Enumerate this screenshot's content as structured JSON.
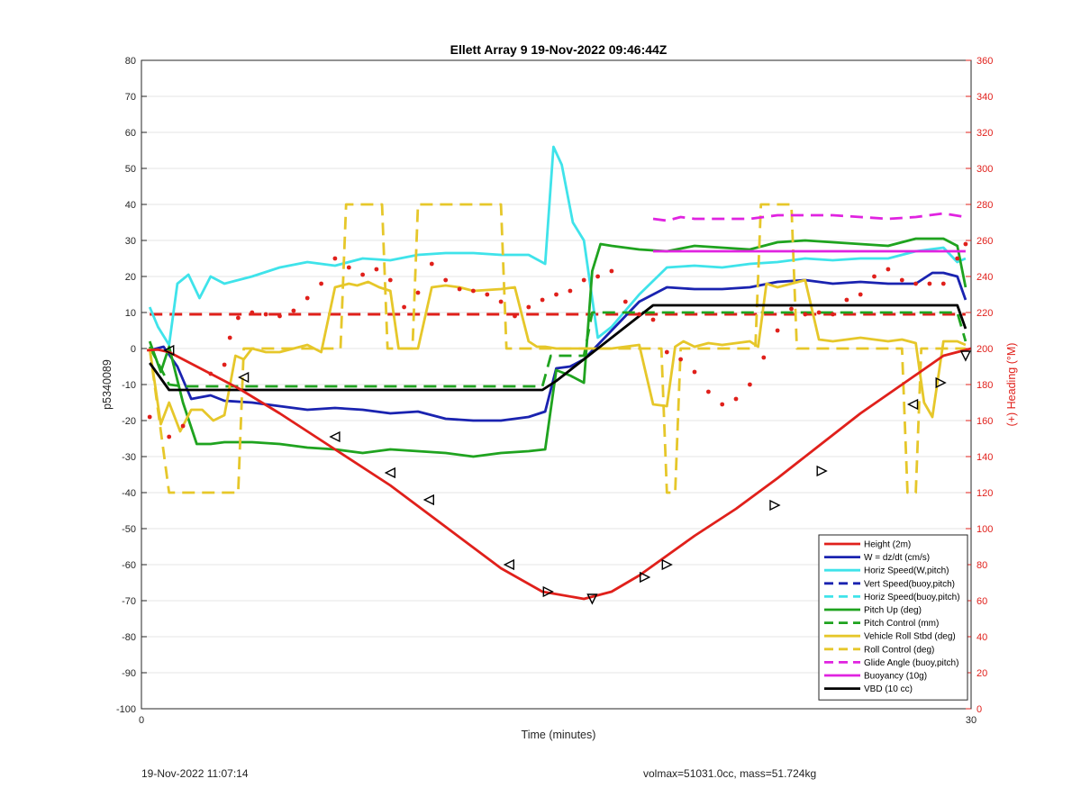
{
  "chart_data": {
    "type": "line",
    "title": "Ellett Array 9 19-Nov-2022 09:46:44Z",
    "xlabel": "Time (minutes)",
    "ylabel": "p5340089",
    "ylabel_right": "(+) Heading (°M)",
    "xlim": [
      0,
      30
    ],
    "ylim": [
      -100,
      80
    ],
    "ylim_right": [
      0,
      360
    ],
    "xticks": [
      0,
      30
    ],
    "yticks": [
      -100,
      -90,
      -80,
      -70,
      -60,
      -50,
      -40,
      -30,
      -20,
      -10,
      0,
      10,
      20,
      30,
      40,
      50,
      60,
      70,
      80
    ],
    "yticks_right": [
      0,
      20,
      40,
      60,
      80,
      100,
      120,
      140,
      160,
      180,
      200,
      220,
      240,
      260,
      280,
      300,
      320,
      340,
      360
    ],
    "grid": "horizontal",
    "legend_position": "bottom-right",
    "series": [
      {
        "name": "Height (2m)",
        "color": "#e0201b",
        "style": "solid",
        "x": [
          0.2,
          0.6,
          1.0,
          1.5,
          2.5,
          3.5,
          5.0,
          7.0,
          9.0,
          11.0,
          13.0,
          14.5,
          16.0,
          17.0,
          18.0,
          19.0,
          20.0,
          21.5,
          23.0,
          24.5,
          26.0,
          27.5,
          29.0,
          30.0
        ],
        "y": [
          -0.5,
          -0.3,
          -1.0,
          -3.0,
          -7.0,
          -11.0,
          -18.0,
          -28.0,
          -38.0,
          -49.5,
          -61.0,
          -67.5,
          -69.5,
          -67.5,
          -63.0,
          -57.5,
          -52.0,
          -44.5,
          -36.0,
          -27.0,
          -18.0,
          -10.0,
          -2.0,
          0.0
        ]
      },
      {
        "name": "W = dz/dt (cm/s)",
        "color": "#1a23b0",
        "style": "solid",
        "x": [
          0.3,
          0.8,
          1.3,
          1.8,
          2.5,
          3.0,
          4.0,
          5.0,
          6.0,
          7.0,
          8.0,
          9.0,
          10.0,
          11.0,
          12.0,
          13.0,
          14.0,
          14.6,
          15.0,
          15.5,
          16.0,
          17.0,
          18.0,
          19.0,
          20.0,
          21.0,
          22.0,
          23.0,
          24.0,
          25.0,
          26.0,
          27.0,
          28.0,
          28.6,
          29.0,
          29.5,
          29.8
        ],
        "y": [
          -0.5,
          0.5,
          -5.0,
          -14.0,
          -13.0,
          -14.5,
          -15.0,
          -16.0,
          -17.0,
          -16.5,
          -17.0,
          -18.0,
          -17.5,
          -19.5,
          -20.0,
          -20.0,
          -19.0,
          -17.5,
          -5.5,
          -5.0,
          -3.0,
          5.0,
          13.0,
          17.0,
          16.5,
          16.5,
          17.0,
          18.5,
          19.0,
          18.0,
          18.5,
          18.0,
          18.0,
          21.0,
          21.0,
          20.0,
          13.5
        ]
      },
      {
        "name": "Horiz Speed(W,pitch)",
        "color": "#3fe3ea",
        "style": "solid",
        "x": [
          0.3,
          0.6,
          1.0,
          1.3,
          1.7,
          2.1,
          2.5,
          3.0,
          4.0,
          5.0,
          6.0,
          7.0,
          8.0,
          9.0,
          10.0,
          11.0,
          12.0,
          13.0,
          14.0,
          14.6,
          14.9,
          15.2,
          15.6,
          16.0,
          16.5,
          17.0,
          18.0,
          19.0,
          20.0,
          21.0,
          22.0,
          23.0,
          24.0,
          25.0,
          26.0,
          27.0,
          28.0,
          29.0,
          29.5,
          29.8
        ],
        "y": [
          11.5,
          6.0,
          1.0,
          18.0,
          20.5,
          14.0,
          20.0,
          18.0,
          20.0,
          22.5,
          24.0,
          23.0,
          25.0,
          24.5,
          26.0,
          26.5,
          26.5,
          26.0,
          26.0,
          23.5,
          56.0,
          51.0,
          35.0,
          30.0,
          3.0,
          6.0,
          15.0,
          22.5,
          23.0,
          22.5,
          23.5,
          24.0,
          25.0,
          24.5,
          25.0,
          25.0,
          27.0,
          28.0,
          24.0,
          25.0
        ]
      },
      {
        "name": "Vert Speed(buoy,pitch)",
        "color": "#1a23b0",
        "style": "dashed",
        "x": [],
        "y": []
      },
      {
        "name": "Horiz Speed(buoy,pitch)",
        "color": "#3fe3ea",
        "style": "dashed",
        "x": [],
        "y": []
      },
      {
        "name": "Pitch Up (deg)",
        "color": "#1fa31f",
        "style": "solid",
        "x": [
          0.3,
          0.7,
          1.0,
          1.5,
          2.0,
          2.5,
          3.0,
          4.0,
          5.0,
          6.0,
          7.0,
          8.0,
          9.0,
          10.0,
          11.0,
          12.0,
          13.0,
          14.0,
          14.6,
          15.0,
          15.5,
          16.0,
          16.3,
          16.6,
          17.0,
          18.0,
          19.0,
          20.0,
          21.0,
          22.0,
          23.0,
          24.0,
          25.0,
          26.0,
          27.0,
          28.0,
          29.0,
          29.5,
          29.8
        ],
        "y": [
          2.0,
          -6.5,
          0.5,
          -15.0,
          -26.5,
          -26.5,
          -26.0,
          -26.0,
          -26.5,
          -27.5,
          -28.0,
          -29.0,
          -28.0,
          -28.5,
          -29.0,
          -30.0,
          -29.0,
          -28.5,
          -28.0,
          -6.0,
          -7.5,
          -9.5,
          21.5,
          29.0,
          28.5,
          27.5,
          27.0,
          28.5,
          28.0,
          27.5,
          29.5,
          30.0,
          29.5,
          29.0,
          28.5,
          30.5,
          30.5,
          28.5,
          17.0
        ]
      },
      {
        "name": "Pitch Control (mm)",
        "color": "#1fa31f",
        "style": "dashed",
        "x": [
          0.3,
          1.0,
          1.5,
          14.5,
          14.8,
          16.0,
          16.3,
          29.5,
          29.8
        ],
        "y": [
          0.5,
          -10.0,
          -10.5,
          -10.5,
          -2.0,
          -2.0,
          10.0,
          10.0,
          2.0
        ]
      },
      {
        "name": "Vehicle Roll Stbd (deg)",
        "color": "#e6c72a",
        "style": "solid",
        "x": [
          0.3,
          0.7,
          1.0,
          1.4,
          1.8,
          2.2,
          2.6,
          3.0,
          3.4,
          3.7,
          4.0,
          4.5,
          5.0,
          5.5,
          6.0,
          6.5,
          7.0,
          7.5,
          7.8,
          8.2,
          8.6,
          9.0,
          9.3,
          9.6,
          10.0,
          10.5,
          11.0,
          11.5,
          12.0,
          13.0,
          13.5,
          14.0,
          14.3,
          14.6,
          15.0,
          16.0,
          17.0,
          18.0,
          18.5,
          19.0,
          19.3,
          19.6,
          20.0,
          20.5,
          21.0,
          22.0,
          22.3,
          22.6,
          23.0,
          23.5,
          24.0,
          24.5,
          25.0,
          25.5,
          26.0,
          26.5,
          27.0,
          27.5,
          28.0,
          28.3,
          28.6,
          29.0,
          29.5,
          29.8
        ],
        "y": [
          0.0,
          -21.0,
          -15.0,
          -23.0,
          -17.0,
          -17.0,
          -20.0,
          -18.5,
          -2.0,
          -3.0,
          0.0,
          -1.0,
          -1.0,
          0.0,
          1.0,
          -1.0,
          17.0,
          18.0,
          17.5,
          18.5,
          17.0,
          16.0,
          0.0,
          0.0,
          0.0,
          17.0,
          17.5,
          17.0,
          16.0,
          16.5,
          17.0,
          2.0,
          0.5,
          0.5,
          0.0,
          0.0,
          0.0,
          1.0,
          -15.5,
          -16.0,
          0.5,
          2.0,
          0.5,
          1.5,
          1.0,
          2.0,
          0.5,
          18.0,
          17.0,
          18.0,
          19.0,
          2.5,
          2.0,
          2.5,
          3.0,
          2.5,
          2.0,
          2.5,
          1.5,
          -15.0,
          -19.0,
          2.0,
          2.0,
          1.0
        ]
      },
      {
        "name": "Roll Control (deg)",
        "color": "#e6c72a",
        "style": "dashed",
        "x": [
          0.3,
          1.0,
          3.5,
          3.7,
          7.2,
          7.4,
          8.7,
          8.9,
          9.8,
          10.0,
          13.0,
          13.2,
          18.8,
          19.0,
          19.3,
          19.5,
          22.2,
          22.4,
          23.5,
          23.7,
          27.5,
          27.7,
          28.0,
          28.2,
          29.8
        ],
        "y": [
          0.0,
          -40.0,
          -40.0,
          0.0,
          0.0,
          40.0,
          40.0,
          0.0,
          0.0,
          40.0,
          40.0,
          0.0,
          0.0,
          -40.0,
          -40.0,
          0.0,
          0.0,
          40.0,
          40.0,
          0.0,
          0.0,
          -40.0,
          -40.0,
          0.0,
          0.0
        ]
      },
      {
        "name": "Glide Angle (buoy,pitch)",
        "color": "#e023e0",
        "style": "dashed",
        "x": [
          18.5,
          19.0,
          19.5,
          20.0,
          21.0,
          22.0,
          22.5,
          23.0,
          24.0,
          25.0,
          26.0,
          27.0,
          28.0,
          29.0,
          29.8
        ],
        "y": [
          36.0,
          35.5,
          36.5,
          36.0,
          36.0,
          36.0,
          36.5,
          37.0,
          37.0,
          37.0,
          36.5,
          36.0,
          36.5,
          37.5,
          36.5
        ]
      },
      {
        "name": "Buoyancy (10g)",
        "color": "#e023e0",
        "style": "solid",
        "x": [
          18.5,
          29.8
        ],
        "y": [
          27.0,
          27.0
        ]
      },
      {
        "name": "VBD (10 cc)",
        "color": "#000000",
        "style": "solid",
        "x": [
          0.3,
          1.0,
          14.5,
          15.0,
          16.0,
          17.0,
          18.0,
          18.5,
          29.5,
          29.8
        ],
        "y": [
          -4.0,
          -11.5,
          -11.5,
          -9.0,
          -3.0,
          3.0,
          9.0,
          12.0,
          12.0,
          5.5
        ]
      }
    ],
    "heading_series": {
      "name": "Heading",
      "axis": "right",
      "color": "#e0201b",
      "markers": "dots",
      "x": [
        0.3,
        1.0,
        1.5,
        2.5,
        3.0,
        3.2,
        3.5,
        4.0,
        4.5,
        5.0,
        5.5,
        6.0,
        6.5,
        7.0,
        7.5,
        8.0,
        8.5,
        9.0,
        9.5,
        10.0,
        10.5,
        11.0,
        11.5,
        12.0,
        12.5,
        13.0,
        13.5,
        14.0,
        14.5,
        15.0,
        15.5,
        16.0,
        16.5,
        17.0,
        17.5,
        18.0,
        18.5,
        19.0,
        19.5,
        20.0,
        20.5,
        21.0,
        21.5,
        22.0,
        22.5,
        23.0,
        23.5,
        24.0,
        24.5,
        25.0,
        25.5,
        26.0,
        26.5,
        27.0,
        27.5,
        28.0,
        28.5,
        29.0,
        29.5,
        29.8
      ],
      "y": [
        162,
        151,
        157,
        186,
        191,
        206,
        217,
        220,
        219,
        218,
        221,
        228,
        236,
        250,
        245,
        241,
        244,
        238,
        223,
        231,
        247,
        238,
        233,
        232,
        230,
        226,
        218,
        223,
        227,
        230,
        232,
        238,
        240,
        243,
        226,
        219,
        216,
        198,
        194,
        187,
        176,
        169,
        172,
        180,
        195,
        210,
        222,
        219,
        220,
        219,
        227,
        230,
        240,
        244,
        238,
        236,
        236,
        236,
        250,
        258
      ]
    },
    "height_markers": [
      {
        "x": 1.0,
        "y": -0.5,
        "dir": "left"
      },
      {
        "x": 3.7,
        "y": -8.0,
        "dir": "left"
      },
      {
        "x": 7.0,
        "y": -24.5,
        "dir": "left"
      },
      {
        "x": 9.0,
        "y": -34.5,
        "dir": "left"
      },
      {
        "x": 10.4,
        "y": -42.0,
        "dir": "left"
      },
      {
        "x": 13.3,
        "y": -60.0,
        "dir": "left"
      },
      {
        "x": 14.7,
        "y": -67.5,
        "dir": "right"
      },
      {
        "x": 16.3,
        "y": -69.5,
        "dir": "down"
      },
      {
        "x": 18.2,
        "y": -63.5,
        "dir": "right"
      },
      {
        "x": 19.0,
        "y": -60.0,
        "dir": "right"
      },
      {
        "x": 22.9,
        "y": -43.5,
        "dir": "right"
      },
      {
        "x": 24.6,
        "y": -34.0,
        "dir": "right"
      },
      {
        "x": 27.9,
        "y": -15.5,
        "dir": "left"
      },
      {
        "x": 28.9,
        "y": -9.5,
        "dir": "right"
      },
      {
        "x": 29.8,
        "y": -2.0,
        "dir": "down"
      }
    ],
    "reference_lines": [
      {
        "axis": "left",
        "y": 9.5,
        "color": "#e0201b",
        "style": "dashed"
      }
    ]
  },
  "footer": {
    "left": "19-Nov-2022 11:07:14",
    "right": "volmax=51031.0cc, mass=51.724kg"
  }
}
